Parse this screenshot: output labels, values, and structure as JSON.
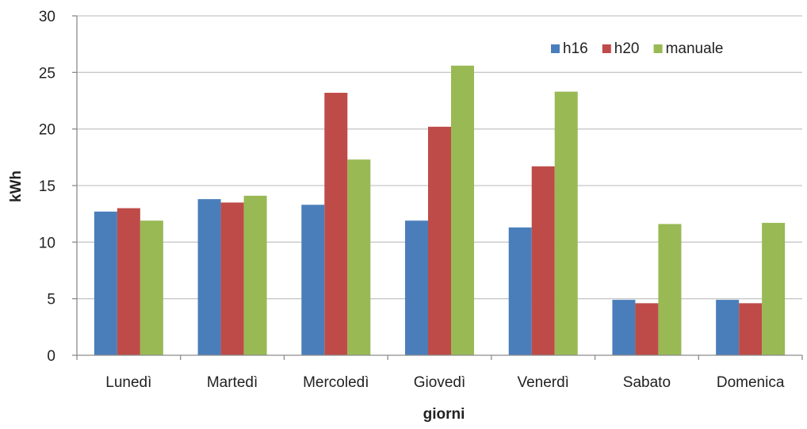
{
  "chart_data": {
    "type": "bar",
    "title": "",
    "xlabel": "giorni",
    "ylabel": "kWh",
    "ylim": [
      0,
      30
    ],
    "yticks": [
      0,
      5,
      10,
      15,
      20,
      25,
      30
    ],
    "grid": true,
    "legend_position": "top-right",
    "categories": [
      "Lunedì",
      "Martedì",
      "Mercoledì",
      "Giovedì",
      "Venerdì",
      "Sabato",
      "Domenica"
    ],
    "series": [
      {
        "name": "h16",
        "color": "#4a7ebb",
        "values": [
          12.7,
          13.8,
          13.3,
          11.9,
          11.3,
          4.9,
          4.9
        ]
      },
      {
        "name": "h20",
        "color": "#be4b48",
        "values": [
          13.0,
          13.5,
          23.2,
          20.2,
          16.7,
          4.6,
          4.6
        ]
      },
      {
        "name": "manuale",
        "color": "#98b954",
        "values": [
          11.9,
          14.1,
          17.3,
          25.6,
          23.3,
          11.6,
          11.7
        ]
      }
    ]
  }
}
